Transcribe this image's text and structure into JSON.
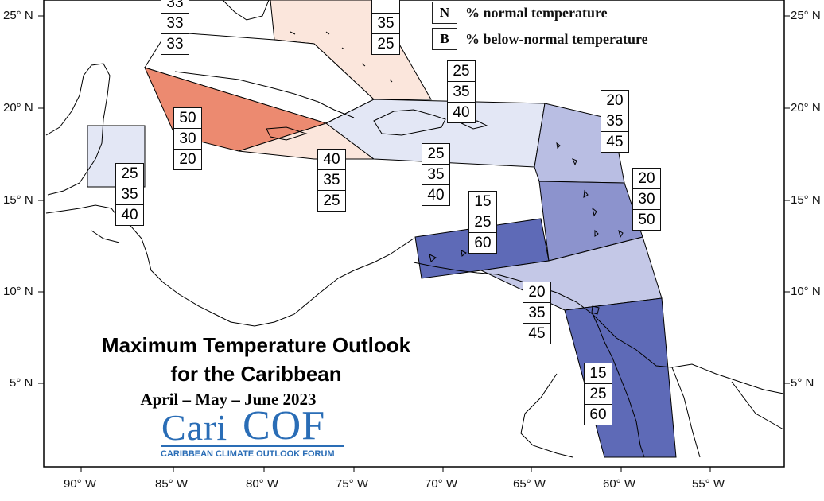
{
  "map": {
    "title_line1": "Maximum Temperature Outlook",
    "title_line2": "for the Caribbean",
    "period": "April – May – June 2023",
    "colors": {
      "above_50": "#ec8a70",
      "above_40": "#fbe3d8",
      "above_low": "#fdeee6",
      "below_40": "#e3e7f5",
      "below_45": "#b9bee3",
      "below_50": "#8c93cd",
      "below_60": "#5e6ab7",
      "normal_below": "#d9ddf0",
      "border": "#000000"
    }
  },
  "legend": {
    "items": [
      {
        "key": "N",
        "text": "% normal temperature"
      },
      {
        "key": "B",
        "text": "% below-normal temperature"
      }
    ]
  },
  "axes": {
    "lat_left": [
      "25° N",
      "20° N",
      "15° N",
      "10° N",
      "5° N"
    ],
    "lat_right": [
      "25° N",
      "20° N",
      "15° N",
      "10° N",
      "5° N"
    ],
    "lon": [
      "90° W",
      "85° W",
      "80° W",
      "75° W",
      "70° W",
      "65° W",
      "60° W",
      "55° W"
    ]
  },
  "forecast_boxes": [
    {
      "name": "bahamas-west",
      "above": "33",
      "normal": "33",
      "below": "33"
    },
    {
      "name": "bahamas-east",
      "above": "",
      "normal": "35",
      "below": "25"
    },
    {
      "name": "turks-caicos",
      "above": "25",
      "normal": "35",
      "below": "40"
    },
    {
      "name": "cuba-cayman",
      "above": "50",
      "normal": "30",
      "below": "20"
    },
    {
      "name": "jamaica",
      "above": "40",
      "normal": "35",
      "below": "25"
    },
    {
      "name": "hispaniola-pr",
      "above": "25",
      "normal": "35",
      "below": "40"
    },
    {
      "name": "belize",
      "above": "25",
      "normal": "35",
      "below": "40"
    },
    {
      "name": "leeward",
      "above": "20",
      "normal": "35",
      "below": "45"
    },
    {
      "name": "windward",
      "above": "20",
      "normal": "30",
      "below": "50"
    },
    {
      "name": "abc-islands",
      "above": "15",
      "normal": "25",
      "below": "60"
    },
    {
      "name": "trinidad",
      "above": "20",
      "normal": "35",
      "below": "45"
    },
    {
      "name": "guianas",
      "above": "15",
      "normal": "25",
      "below": "60"
    }
  ],
  "logo": {
    "text_cari": "Cari",
    "text_cof": "COF",
    "tagline": "CARIBBEAN CLIMATE OUTLOOK FORUM"
  }
}
